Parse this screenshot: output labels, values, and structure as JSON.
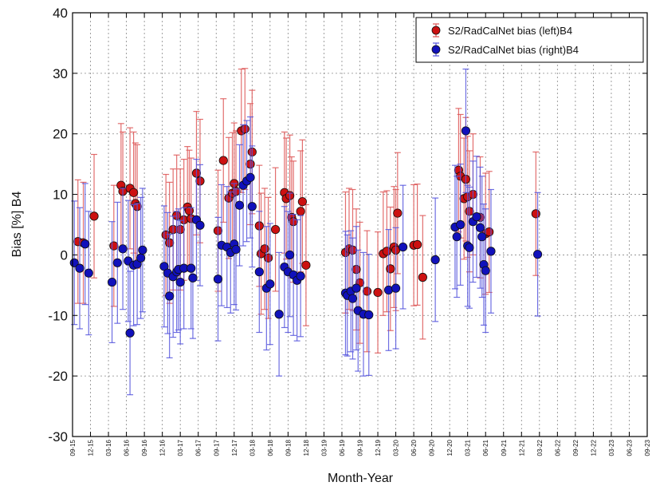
{
  "chart_data": {
    "type": "scatter",
    "xlabel": "Month-Year",
    "ylabel": "Bias [%] B4",
    "ylim": [
      -30,
      40
    ],
    "yticks": [
      -30,
      -20,
      -10,
      0,
      10,
      20,
      30,
      40
    ],
    "xticks": [
      "09-15",
      "12-15",
      "03-16",
      "06-16",
      "09-16",
      "12-16",
      "03-17",
      "06-17",
      "09-17",
      "12-17",
      "03-18",
      "06-18",
      "09-18",
      "12-18",
      "03-19",
      "06-19",
      "09-19",
      "12-19",
      "03-20",
      "06-20",
      "09-20",
      "12-20",
      "03-21",
      "06-21",
      "09-21",
      "12-21",
      "03-22",
      "06-22",
      "09-22",
      "12-22",
      "03-23",
      "06-23",
      "09-23"
    ],
    "grid": true,
    "legend_position": "top-right",
    "series": [
      {
        "name": "S2/RadCalNet bias (left)B4",
        "color": "#cc1111",
        "points": [
          {
            "x": 0.3,
            "y": 2.2,
            "err": 10.2
          },
          {
            "x": 0.6,
            "y": 2.0,
            "err": 10.0
          },
          {
            "x": 1.2,
            "y": 6.4,
            "err": 10.2
          },
          {
            "x": 2.3,
            "y": 1.5,
            "err": 10.0
          },
          {
            "x": 2.7,
            "y": 11.5,
            "err": 10.2
          },
          {
            "x": 2.8,
            "y": 10.5,
            "err": 9.8
          },
          {
            "x": 3.2,
            "y": 11.0,
            "err": 10.0
          },
          {
            "x": 3.4,
            "y": 10.3,
            "err": 10.0
          },
          {
            "x": 3.5,
            "y": 8.5,
            "err": 10.0
          },
          {
            "x": 3.6,
            "y": 8.0,
            "err": 10.2
          },
          {
            "x": 5.2,
            "y": 3.3,
            "err": 10.0
          },
          {
            "x": 5.4,
            "y": 2.0,
            "err": 10.0
          },
          {
            "x": 5.6,
            "y": 4.2,
            "err": 10.0
          },
          {
            "x": 5.8,
            "y": 6.5,
            "err": 10.0
          },
          {
            "x": 6.0,
            "y": 4.2,
            "err": 10.0
          },
          {
            "x": 6.2,
            "y": 5.8,
            "err": 10.0
          },
          {
            "x": 6.4,
            "y": 7.9,
            "err": 10.0
          },
          {
            "x": 6.5,
            "y": 7.3,
            "err": 10.0
          },
          {
            "x": 6.6,
            "y": 6.0,
            "err": 10.0
          },
          {
            "x": 6.9,
            "y": 13.5,
            "err": 10.2
          },
          {
            "x": 7.1,
            "y": 12.2,
            "err": 10.2
          },
          {
            "x": 8.1,
            "y": 4.0,
            "err": 10.0
          },
          {
            "x": 8.4,
            "y": 15.6,
            "err": 10.2
          },
          {
            "x": 8.7,
            "y": 9.4,
            "err": 10.0
          },
          {
            "x": 8.9,
            "y": 10.2,
            "err": 10.0
          },
          {
            "x": 9.0,
            "y": 11.8,
            "err": 10.0
          },
          {
            "x": 9.1,
            "y": 10.5,
            "err": 10.0
          },
          {
            "x": 9.4,
            "y": 20.5,
            "err": 10.2
          },
          {
            "x": 9.6,
            "y": 20.8,
            "err": 10.0
          },
          {
            "x": 9.9,
            "y": 15.0,
            "err": 10.0
          },
          {
            "x": 10.0,
            "y": 17.0,
            "err": 10.2
          },
          {
            "x": 10.4,
            "y": 4.8,
            "err": 10.0
          },
          {
            "x": 10.5,
            "y": 0.2,
            "err": 10.0
          },
          {
            "x": 10.7,
            "y": 1.0,
            "err": 10.0
          },
          {
            "x": 10.9,
            "y": -0.5,
            "err": 10.0
          },
          {
            "x": 11.3,
            "y": 4.2,
            "err": 10.2
          },
          {
            "x": 11.8,
            "y": 10.3,
            "err": 10.0
          },
          {
            "x": 11.9,
            "y": 9.3,
            "err": 10.0
          },
          {
            "x": 12.1,
            "y": 9.8,
            "err": 10.0
          },
          {
            "x": 12.2,
            "y": 6.2,
            "err": 10.0
          },
          {
            "x": 12.3,
            "y": 5.5,
            "err": 10.0
          },
          {
            "x": 12.7,
            "y": 7.2,
            "err": 10.0
          },
          {
            "x": 12.8,
            "y": 8.8,
            "err": 10.2
          },
          {
            "x": 13.0,
            "y": -1.7,
            "err": 10.0
          },
          {
            "x": 15.2,
            "y": 0.4,
            "err": 10.0
          },
          {
            "x": 15.4,
            "y": 1.0,
            "err": 10.0
          },
          {
            "x": 15.6,
            "y": 0.8,
            "err": 10.0
          },
          {
            "x": 15.8,
            "y": -2.4,
            "err": 10.0
          },
          {
            "x": 16.0,
            "y": -4.6,
            "err": 10.0
          },
          {
            "x": 16.4,
            "y": -6.0,
            "err": 10.0
          },
          {
            "x": 17.0,
            "y": -6.2,
            "err": 10.0
          },
          {
            "x": 17.3,
            "y": 0.2,
            "err": 10.2
          },
          {
            "x": 17.5,
            "y": 0.6,
            "err": 10.0
          },
          {
            "x": 17.7,
            "y": -2.3,
            "err": 10.2
          },
          {
            "x": 17.9,
            "y": 1.3,
            "err": 10.0
          },
          {
            "x": 18.0,
            "y": 0.8,
            "err": 10.0
          },
          {
            "x": 18.1,
            "y": 6.9,
            "err": 10.0
          },
          {
            "x": 19.0,
            "y": 1.6,
            "err": 10.0
          },
          {
            "x": 19.2,
            "y": 1.7,
            "err": 10.0
          },
          {
            "x": 19.5,
            "y": -3.7,
            "err": 10.2
          },
          {
            "x": 21.5,
            "y": 14.0,
            "err": 10.2
          },
          {
            "x": 21.6,
            "y": 13.0,
            "err": 10.2
          },
          {
            "x": 21.8,
            "y": 9.3,
            "err": 10.0
          },
          {
            "x": 21.9,
            "y": 12.5,
            "err": 10.2
          },
          {
            "x": 22.0,
            "y": 9.6,
            "err": 10.0
          },
          {
            "x": 22.1,
            "y": 7.2,
            "err": 10.0
          },
          {
            "x": 22.3,
            "y": 10.0,
            "err": 10.0
          },
          {
            "x": 22.7,
            "y": 6.2,
            "err": 10.0
          },
          {
            "x": 23.0,
            "y": 3.5,
            "err": 10.0
          },
          {
            "x": 23.2,
            "y": 3.8,
            "err": 10.0
          },
          {
            "x": 25.8,
            "y": 6.8,
            "err": 10.2
          }
        ]
      },
      {
        "name": "S2/RadCalNet bias (right)B4",
        "color": "#1111bb",
        "points": [
          {
            "x": 0.1,
            "y": -1.3,
            "err": 10.2
          },
          {
            "x": 0.4,
            "y": -2.2,
            "err": 10.0
          },
          {
            "x": 0.7,
            "y": 1.8,
            "err": 10.0
          },
          {
            "x": 0.9,
            "y": -3.0,
            "err": 10.2
          },
          {
            "x": 2.2,
            "y": -4.5,
            "err": 10.0
          },
          {
            "x": 2.5,
            "y": -1.3,
            "err": 10.0
          },
          {
            "x": 2.8,
            "y": 1.0,
            "err": 10.0
          },
          {
            "x": 3.1,
            "y": -1.0,
            "err": 10.0
          },
          {
            "x": 3.2,
            "y": -12.9,
            "err": 10.2
          },
          {
            "x": 3.4,
            "y": -1.7,
            "err": 10.0
          },
          {
            "x": 3.6,
            "y": -1.5,
            "err": 10.0
          },
          {
            "x": 3.8,
            "y": -0.5,
            "err": 10.0
          },
          {
            "x": 3.9,
            "y": 0.8,
            "err": 10.2
          },
          {
            "x": 5.1,
            "y": -1.9,
            "err": 10.0
          },
          {
            "x": 5.3,
            "y": -3.0,
            "err": 10.0
          },
          {
            "x": 5.4,
            "y": -6.8,
            "err": 10.2
          },
          {
            "x": 5.6,
            "y": -3.6,
            "err": 10.0
          },
          {
            "x": 5.8,
            "y": -2.8,
            "err": 10.0
          },
          {
            "x": 5.9,
            "y": -2.4,
            "err": 10.0
          },
          {
            "x": 6.0,
            "y": -4.5,
            "err": 10.2
          },
          {
            "x": 6.2,
            "y": -2.2,
            "err": 10.0
          },
          {
            "x": 6.6,
            "y": -2.2,
            "err": 10.0
          },
          {
            "x": 6.7,
            "y": -3.8,
            "err": 10.0
          },
          {
            "x": 6.9,
            "y": 5.8,
            "err": 10.0
          },
          {
            "x": 7.1,
            "y": 4.9,
            "err": 10.0
          },
          {
            "x": 8.1,
            "y": -4.0,
            "err": 10.2
          },
          {
            "x": 8.3,
            "y": 1.6,
            "err": 10.0
          },
          {
            "x": 8.6,
            "y": 1.3,
            "err": 10.0
          },
          {
            "x": 8.8,
            "y": 0.4,
            "err": 10.0
          },
          {
            "x": 9.0,
            "y": 1.8,
            "err": 10.0
          },
          {
            "x": 9.1,
            "y": 0.9,
            "err": 10.0
          },
          {
            "x": 9.3,
            "y": 8.2,
            "err": 10.0
          },
          {
            "x": 9.5,
            "y": 11.5,
            "err": 10.0
          },
          {
            "x": 9.7,
            "y": 12.2,
            "err": 10.0
          },
          {
            "x": 9.9,
            "y": 12.8,
            "err": 10.0
          },
          {
            "x": 10.0,
            "y": 8.0,
            "err": 10.0
          },
          {
            "x": 10.4,
            "y": -2.8,
            "err": 10.0
          },
          {
            "x": 10.8,
            "y": -5.5,
            "err": 10.2
          },
          {
            "x": 11.0,
            "y": -4.8,
            "err": 10.0
          },
          {
            "x": 11.5,
            "y": -9.8,
            "err": 10.2
          },
          {
            "x": 11.8,
            "y": -2.0,
            "err": 10.0
          },
          {
            "x": 12.0,
            "y": -2.8,
            "err": 10.0
          },
          {
            "x": 12.1,
            "y": 0.0,
            "err": 10.2
          },
          {
            "x": 12.3,
            "y": -3.3,
            "err": 10.0
          },
          {
            "x": 12.5,
            "y": -4.2,
            "err": 10.0
          },
          {
            "x": 12.7,
            "y": -3.5,
            "err": 10.0
          },
          {
            "x": 15.2,
            "y": -6.3,
            "err": 10.2
          },
          {
            "x": 15.3,
            "y": -6.7,
            "err": 10.0
          },
          {
            "x": 15.5,
            "y": -6.0,
            "err": 10.0
          },
          {
            "x": 15.6,
            "y": -7.2,
            "err": 10.0
          },
          {
            "x": 15.8,
            "y": -5.5,
            "err": 10.2
          },
          {
            "x": 15.9,
            "y": -9.2,
            "err": 10.0
          },
          {
            "x": 16.2,
            "y": -9.8,
            "err": 10.2
          },
          {
            "x": 16.5,
            "y": -9.9,
            "err": 10.0
          },
          {
            "x": 17.6,
            "y": -5.8,
            "err": 10.0
          },
          {
            "x": 18.0,
            "y": -5.5,
            "err": 10.0
          },
          {
            "x": 18.4,
            "y": 1.3,
            "err": 10.2
          },
          {
            "x": 20.2,
            "y": -0.8,
            "err": 10.2
          },
          {
            "x": 21.3,
            "y": 4.6,
            "err": 10.2
          },
          {
            "x": 21.4,
            "y": 3.0,
            "err": 10.0
          },
          {
            "x": 21.6,
            "y": 5.0,
            "err": 10.0
          },
          {
            "x": 21.9,
            "y": 20.5,
            "err": 10.2
          },
          {
            "x": 22.0,
            "y": 1.5,
            "err": 10.0
          },
          {
            "x": 22.1,
            "y": 1.2,
            "err": 10.0
          },
          {
            "x": 22.3,
            "y": 5.5,
            "err": 10.0
          },
          {
            "x": 22.5,
            "y": 6.3,
            "err": 10.0
          },
          {
            "x": 22.7,
            "y": 4.5,
            "err": 10.0
          },
          {
            "x": 22.8,
            "y": 3.0,
            "err": 10.0
          },
          {
            "x": 22.9,
            "y": -1.6,
            "err": 10.0
          },
          {
            "x": 23.0,
            "y": -2.6,
            "err": 10.2
          },
          {
            "x": 23.3,
            "y": 0.6,
            "err": 10.2
          },
          {
            "x": 25.9,
            "y": 0.1,
            "err": 10.2
          }
        ]
      }
    ]
  }
}
